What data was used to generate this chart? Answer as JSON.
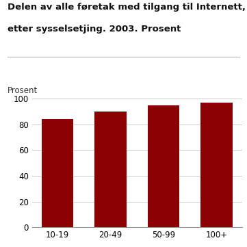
{
  "categories": [
    "10-19",
    "20-49",
    "50-99",
    "100+"
  ],
  "values": [
    84,
    90,
    95,
    97
  ],
  "bar_color": "#8B0000",
  "title_line1": "Delen av alle føretak med tilgang til Internett, fordelt",
  "title_line2": "etter sysselsetjing. 2003. Prosent",
  "ylabel": "Prosent",
  "ylim": [
    0,
    100
  ],
  "yticks": [
    0,
    20,
    40,
    60,
    80,
    100
  ],
  "background_color": "#ffffff",
  "grid_color": "#cccccc",
  "title_fontsize": 9.5,
  "tick_fontsize": 8.5,
  "ylabel_fontsize": 8.5,
  "separator_color": "#bbbbbb"
}
